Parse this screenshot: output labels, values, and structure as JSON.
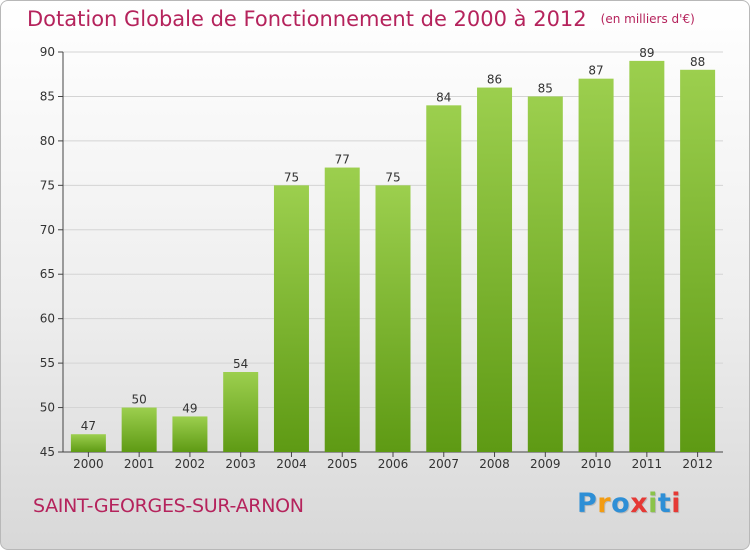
{
  "header": {
    "title": "Dotation Globale de Fonctionnement de 2000 à 2012",
    "subtitle": "(en milliers d'€)"
  },
  "footer": {
    "commune": "SAINT-GEORGES-SUR-ARNON",
    "logo_letters": [
      "P",
      "r",
      "o",
      "x",
      "i",
      "t",
      "i"
    ],
    "logo_colors": [
      "#2e8fd6",
      "#f39c12",
      "#2e8fd6",
      "#e53935",
      "#8bc34a",
      "#2e8fd6",
      "#e53935"
    ]
  },
  "colors": {
    "bar_top": "#9ccf4e",
    "bar_bottom": "#5e9a14",
    "title": "#b5235c"
  },
  "chart_data": {
    "type": "bar",
    "categories": [
      "2000",
      "2001",
      "2002",
      "2003",
      "2004",
      "2005",
      "2006",
      "2007",
      "2008",
      "2009",
      "2010",
      "2011",
      "2012"
    ],
    "values": [
      47,
      50,
      49,
      54,
      75,
      77,
      75,
      84,
      86,
      85,
      87,
      89,
      88
    ],
    "ylim": [
      45,
      90
    ],
    "yticks": [
      45,
      50,
      55,
      60,
      65,
      70,
      75,
      80,
      85,
      90
    ],
    "grid": true,
    "data_labels": true,
    "xlabel": "",
    "ylabel": ""
  }
}
